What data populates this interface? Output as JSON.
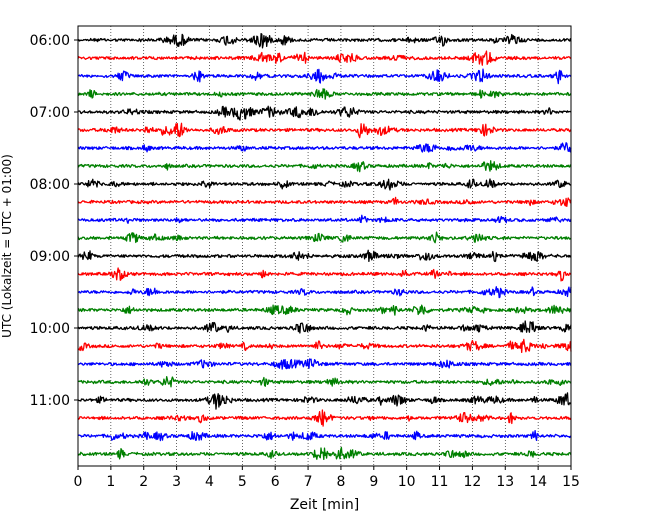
{
  "chart_data": {
    "type": "line",
    "title": "",
    "xlabel": "Zeit  [min]",
    "ylabel": "UTC (Lokalzeit = UTC + 01:00)",
    "xlim": [
      0,
      15
    ],
    "x_ticks": [
      "0",
      "1",
      "2",
      "3",
      "4",
      "5",
      "6",
      "7",
      "8",
      "9",
      "10",
      "11",
      "12",
      "13",
      "14",
      "15"
    ],
    "y_ticks": [
      "06:00",
      "07:00",
      "08:00",
      "09:00",
      "10:00",
      "11:00"
    ],
    "vertical_grid": true,
    "grid_style": "dotted",
    "trace_colors": [
      "#000000",
      "#ff0000",
      "#0000ff",
      "#008000"
    ],
    "series": [
      {
        "start": "06:00",
        "color": "#000000"
      },
      {
        "start": "06:15",
        "color": "#ff0000"
      },
      {
        "start": "06:30",
        "color": "#0000ff"
      },
      {
        "start": "06:45",
        "color": "#008000"
      },
      {
        "start": "07:00",
        "color": "#000000"
      },
      {
        "start": "07:15",
        "color": "#ff0000"
      },
      {
        "start": "07:30",
        "color": "#0000ff"
      },
      {
        "start": "07:45",
        "color": "#008000"
      },
      {
        "start": "08:00",
        "color": "#000000"
      },
      {
        "start": "08:15",
        "color": "#ff0000"
      },
      {
        "start": "08:30",
        "color": "#0000ff"
      },
      {
        "start": "08:45",
        "color": "#008000"
      },
      {
        "start": "09:00",
        "color": "#000000"
      },
      {
        "start": "09:15",
        "color": "#ff0000"
      },
      {
        "start": "09:30",
        "color": "#0000ff"
      },
      {
        "start": "09:45",
        "color": "#008000"
      },
      {
        "start": "10:00",
        "color": "#000000"
      },
      {
        "start": "10:15",
        "color": "#ff0000"
      },
      {
        "start": "10:30",
        "color": "#0000ff"
      },
      {
        "start": "10:45",
        "color": "#008000"
      },
      {
        "start": "11:00",
        "color": "#000000"
      },
      {
        "start": "11:15",
        "color": "#ff0000"
      },
      {
        "start": "11:30",
        "color": "#0000ff"
      },
      {
        "start": "11:45",
        "color": "#008000"
      }
    ]
  }
}
